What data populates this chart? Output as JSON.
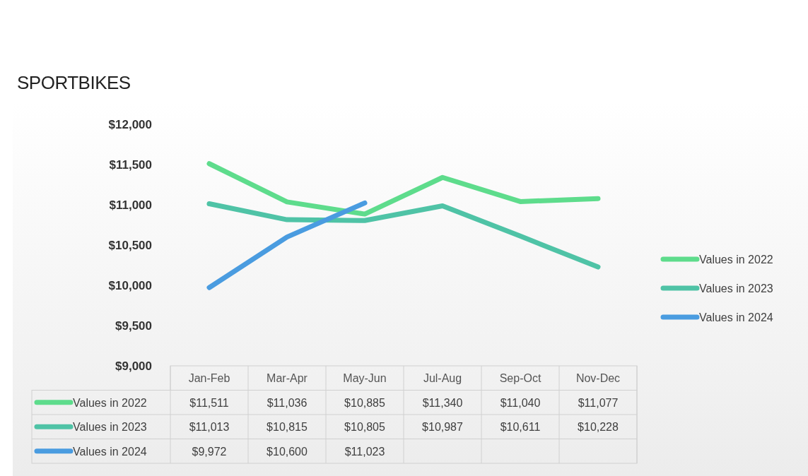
{
  "chart_data": {
    "type": "line",
    "title": "SPORTBIKES",
    "categories": [
      "Jan-Feb",
      "Mar-Apr",
      "May-Jun",
      "Jul-Aug",
      "Sep-Oct",
      "Nov-Dec"
    ],
    "series": [
      {
        "name": "Values in 2022",
        "color": "#5edc8c",
        "values": [
          11511,
          11036,
          10885,
          11340,
          11040,
          11077
        ],
        "value_labels": [
          "$11,511",
          "$11,036",
          "$10,885",
          "$11,340",
          "$11,040",
          "$11,077"
        ]
      },
      {
        "name": "Values in 2023",
        "color": "#4fc3a6",
        "values": [
          11013,
          10815,
          10805,
          10987,
          10611,
          10228
        ],
        "value_labels": [
          "$11,013",
          "$10,815",
          "$10,805",
          "$10,987",
          "$10,611",
          "$10,228"
        ]
      },
      {
        "name": "Values in 2024",
        "color": "#4a9ce0",
        "values": [
          9972,
          10600,
          11023,
          null,
          null,
          null
        ],
        "value_labels": [
          "$9,972",
          "$10,600",
          "$11,023",
          null,
          null,
          null
        ]
      }
    ],
    "ylim": [
      9000,
      12000
    ],
    "yticks": [
      {
        "value": 9000,
        "label": "$9,000"
      },
      {
        "value": 9500,
        "label": "$9,500"
      },
      {
        "value": 10000,
        "label": "$10,000"
      },
      {
        "value": 10500,
        "label": "$10,500"
      },
      {
        "value": 11000,
        "label": "$11,000"
      },
      {
        "value": 11500,
        "label": "$11,500"
      },
      {
        "value": 12000,
        "label": "$12,000"
      }
    ],
    "legend": "right",
    "grid": false,
    "marker": "none",
    "line_style": "solid"
  }
}
